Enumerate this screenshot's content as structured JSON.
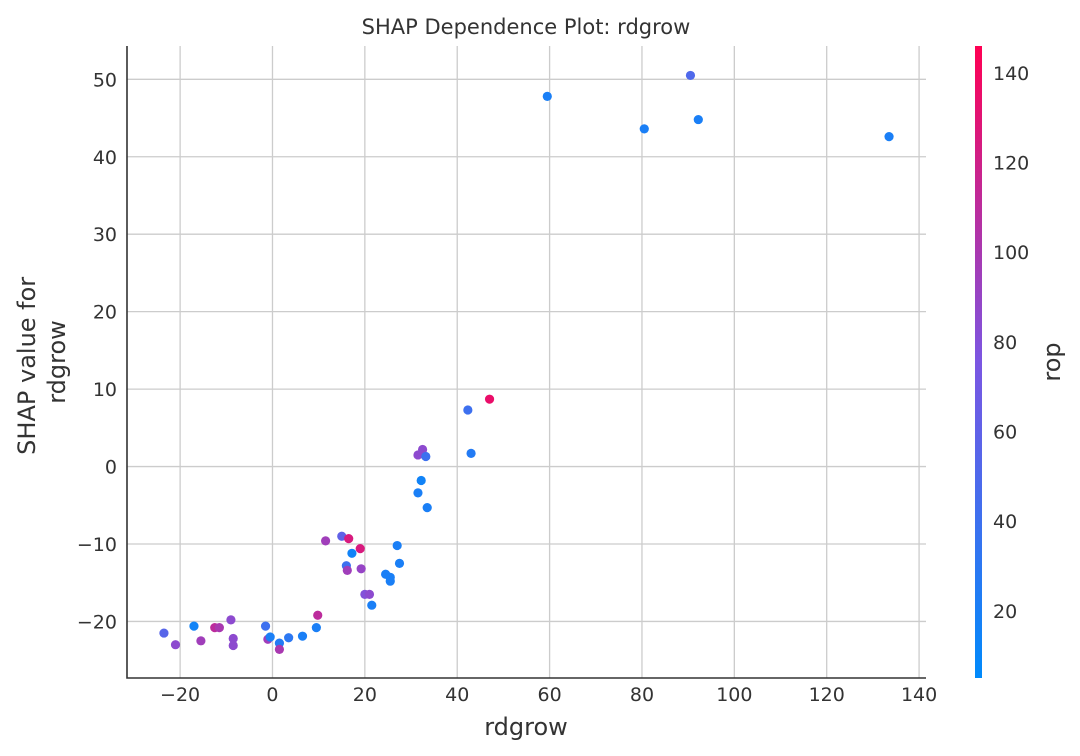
{
  "chart_data": {
    "type": "scatter",
    "title": "SHAP Dependence Plot: rdgrow",
    "xlabel": "rdgrow",
    "ylabel": [
      "SHAP value for",
      "rdgrow"
    ],
    "xlim": [
      -31.5,
      141.5
    ],
    "ylim": [
      -27.3,
      54.3
    ],
    "xticks": [
      -20,
      0,
      20,
      40,
      60,
      80,
      100,
      120,
      140
    ],
    "yticks": [
      -20,
      -10,
      0,
      10,
      20,
      30,
      40,
      50
    ],
    "xtick_labels": [
      "−20",
      "0",
      "20",
      "40",
      "60",
      "80",
      "100",
      "120",
      "140"
    ],
    "ytick_labels": [
      "−20",
      "−10",
      "0",
      "10",
      "20",
      "30",
      "40",
      "50"
    ],
    "grid": true,
    "colorbar": {
      "label": "rop",
      "range": [
        5,
        146
      ],
      "ticks": [
        20,
        40,
        60,
        80,
        100,
        120,
        140
      ],
      "tick_labels": [
        "20",
        "40",
        "60",
        "80",
        "100",
        "120",
        "140"
      ],
      "colors": [
        "#008afb",
        "#7b56e2",
        "#ff0053"
      ]
    },
    "points": [
      {
        "x": -23.5,
        "y": -21.5,
        "c": 55
      },
      {
        "x": -21,
        "y": -23,
        "c": 85
      },
      {
        "x": -17,
        "y": -20.6,
        "c": 15
      },
      {
        "x": -15.5,
        "y": -22.5,
        "c": 95
      },
      {
        "x": -12.5,
        "y": -20.8,
        "c": 110
      },
      {
        "x": -11.5,
        "y": -20.8,
        "c": 100
      },
      {
        "x": -9,
        "y": -19.8,
        "c": 85
      },
      {
        "x": -8.5,
        "y": -22.2,
        "c": 85
      },
      {
        "x": -8.5,
        "y": -23.1,
        "c": 85
      },
      {
        "x": -1.5,
        "y": -20.6,
        "c": 40
      },
      {
        "x": -1,
        "y": -22.3,
        "c": 95
      },
      {
        "x": -0.5,
        "y": -22,
        "c": 20
      },
      {
        "x": 1.5,
        "y": -22.8,
        "c": 25
      },
      {
        "x": 1.5,
        "y": -23.6,
        "c": 100
      },
      {
        "x": 3.5,
        "y": -22.1,
        "c": 30
      },
      {
        "x": 6.5,
        "y": -21.9,
        "c": 20
      },
      {
        "x": 9.5,
        "y": -20.8,
        "c": 20
      },
      {
        "x": 9.8,
        "y": -19.2,
        "c": 110
      },
      {
        "x": 11.5,
        "y": -9.6,
        "c": 95
      },
      {
        "x": 15,
        "y": -9,
        "c": 60
      },
      {
        "x": 16,
        "y": -12.8,
        "c": 40
      },
      {
        "x": 16.2,
        "y": -13.4,
        "c": 95
      },
      {
        "x": 16.5,
        "y": -9.3,
        "c": 125
      },
      {
        "x": 17.2,
        "y": -11.2,
        "c": 15
      },
      {
        "x": 19,
        "y": -10.6,
        "c": 125
      },
      {
        "x": 19.2,
        "y": -13.2,
        "c": 90
      },
      {
        "x": 20,
        "y": -16.5,
        "c": 80
      },
      {
        "x": 21,
        "y": -16.5,
        "c": 85
      },
      {
        "x": 21.5,
        "y": -17.9,
        "c": 20
      },
      {
        "x": 24.5,
        "y": -13.9,
        "c": 20
      },
      {
        "x": 25.5,
        "y": -14.3,
        "c": 20
      },
      {
        "x": 25.5,
        "y": -14.8,
        "c": 20
      },
      {
        "x": 27,
        "y": -10.2,
        "c": 20
      },
      {
        "x": 27.5,
        "y": -12.5,
        "c": 20
      },
      {
        "x": 31.5,
        "y": -3.4,
        "c": 20
      },
      {
        "x": 31.5,
        "y": 1.5,
        "c": 85
      },
      {
        "x": 32.2,
        "y": -1.8,
        "c": 15
      },
      {
        "x": 32.5,
        "y": 2.2,
        "c": 85
      },
      {
        "x": 33.2,
        "y": 1.3,
        "c": 40
      },
      {
        "x": 33.5,
        "y": -5.3,
        "c": 20
      },
      {
        "x": 42.3,
        "y": 7.3,
        "c": 40
      },
      {
        "x": 43,
        "y": 1.7,
        "c": 25
      },
      {
        "x": 47,
        "y": 8.7,
        "c": 135
      },
      {
        "x": 59.5,
        "y": 47.8,
        "c": 20
      },
      {
        "x": 80.5,
        "y": 43.6,
        "c": 20
      },
      {
        "x": 90.5,
        "y": 50.5,
        "c": 50
      },
      {
        "x": 92.2,
        "y": 44.8,
        "c": 20
      },
      {
        "x": 133.5,
        "y": 42.6,
        "c": 20
      }
    ]
  }
}
